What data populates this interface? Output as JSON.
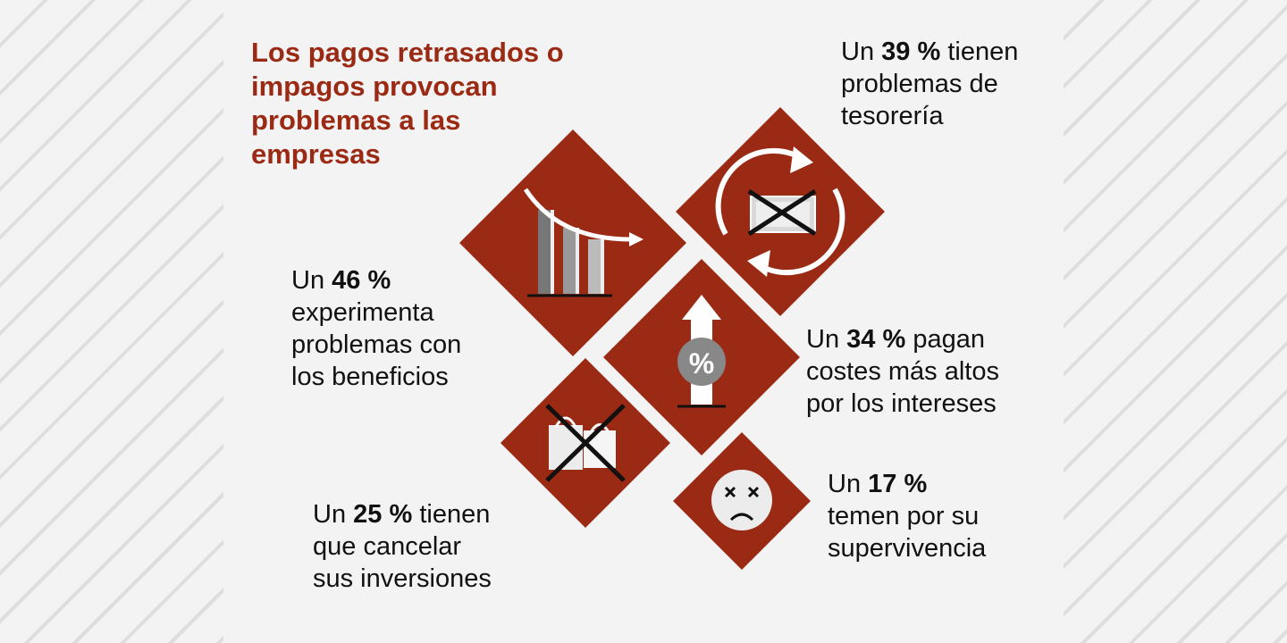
{
  "theme": {
    "accent": "#9b2a14",
    "background": "#f3f3f3"
  },
  "title": "Los pagos retrasados o impagos provocan problemas a las empresas",
  "stats": {
    "treasury": {
      "prefix": "Un",
      "value": "39 %",
      "line1_rest": "tienen",
      "lines": [
        "problemas de",
        "tesorería"
      ],
      "icon": "cash-flow-icon"
    },
    "profits": {
      "prefix": "Un",
      "value": "46 %",
      "line1_rest": "",
      "lines": [
        "experimenta",
        "problemas con",
        "los beneficios"
      ],
      "icon": "declining-bars-icon"
    },
    "interest": {
      "prefix": "Un",
      "value": "34 %",
      "line1_rest": "pagan",
      "lines": [
        "costes más altos",
        "por los intereses"
      ],
      "icon": "rising-interest-icon"
    },
    "investment": {
      "prefix": "Un",
      "value": "25 %",
      "line1_rest": "tienen",
      "lines": [
        "que cancelar",
        "sus inversiones"
      ],
      "icon": "cancelled-bags-icon"
    },
    "survival": {
      "prefix": "Un",
      "value": "17 %",
      "line1_rest": "",
      "lines": [
        "temen por su",
        "supervivencia"
      ],
      "icon": "sad-face-icon"
    }
  },
  "icon_text": {
    "percent_symbol": "%"
  }
}
